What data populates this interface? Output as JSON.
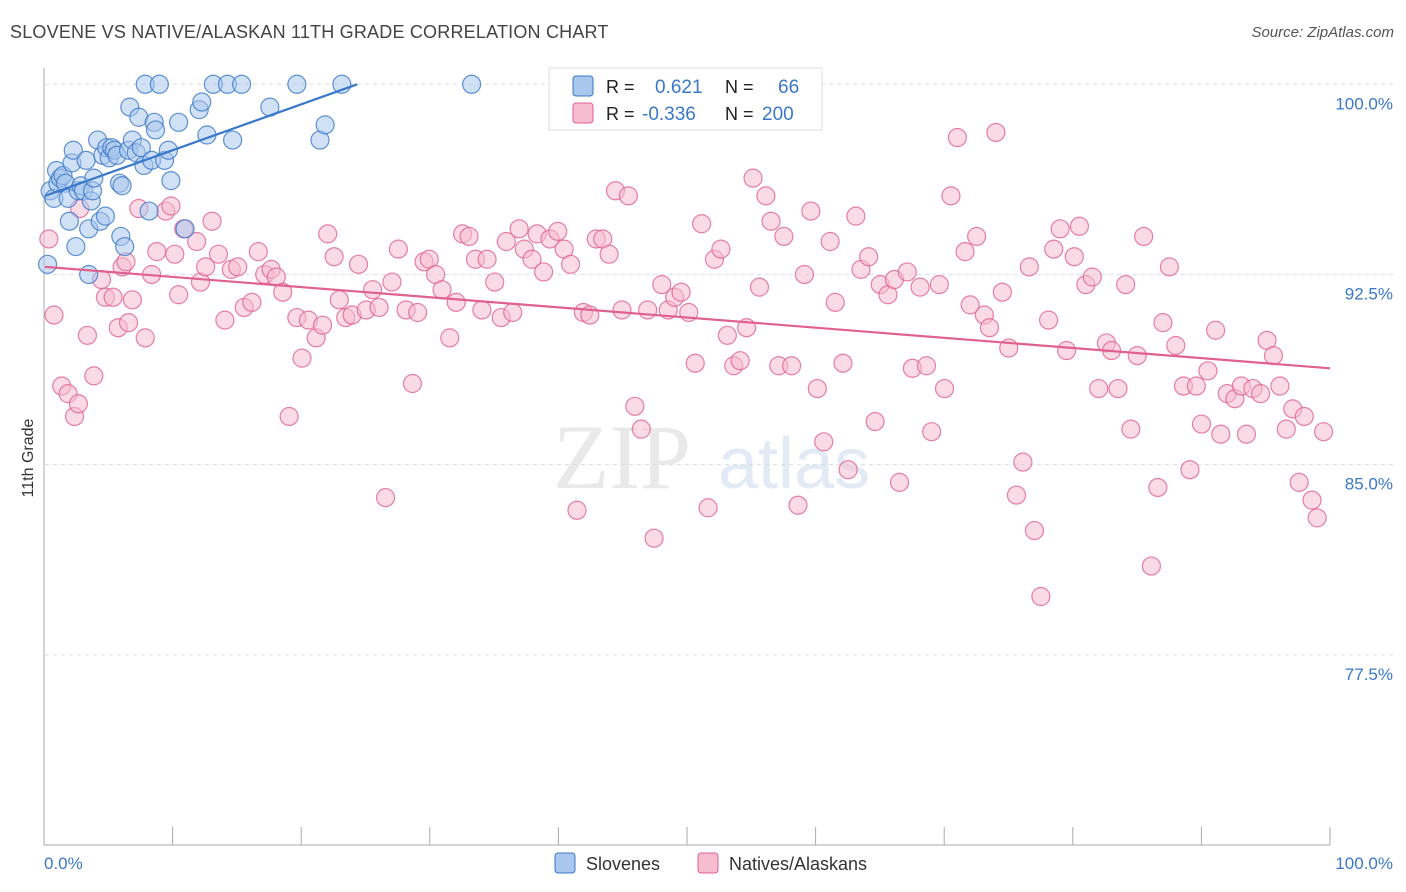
{
  "title": "SLOVENE VS NATIVE/ALASKAN 11TH GRADE CORRELATION CHART",
  "source": "Source: ZipAtlas.com",
  "watermark": {
    "zip": "ZIP",
    "atlas": "atlas"
  },
  "colors": {
    "blue": "#3a78c9",
    "blue_fill": "#a9c6ec",
    "pink": "#e0618f",
    "pink_fill": "#f6bcd0",
    "grid": "#dddddd",
    "tick_label": "#3a78c9"
  },
  "legend": {
    "rows": [
      {
        "r_label": "R =",
        "r_value": "0.621",
        "n_label": "N =",
        "n_value": "66"
      },
      {
        "r_label": "R =",
        "r_value": "-0.336",
        "n_label": "N =",
        "n_value": "200"
      }
    ]
  },
  "bottom_legend": [
    "Slovenes",
    "Natives/Alaskans"
  ],
  "chart_data": {
    "type": "scatter",
    "title": "SLOVENE VS NATIVE/ALASKAN 11TH GRADE CORRELATION CHART",
    "xlabel": "",
    "ylabel": "11th Grade",
    "xlim": [
      0,
      100
    ],
    "ylim": [
      70,
      100.8
    ],
    "x_tick_labels": {
      "left": "0.0%",
      "right": "100.0%"
    },
    "y_ticks": [
      {
        "value": 100.0,
        "label": "100.0%"
      },
      {
        "value": 92.5,
        "label": "92.5%"
      },
      {
        "value": 85.0,
        "label": "85.0%"
      },
      {
        "value": 77.5,
        "label": "77.5%"
      }
    ],
    "grid": true,
    "legend_position": "top-center",
    "series": [
      {
        "name": "Slovenes",
        "color": "#3a78c9",
        "trend": {
          "x": [
            0.0,
            24.3
          ],
          "y": [
            95.6,
            100.0
          ]
        },
        "points": [
          [
            0.2,
            92.9
          ],
          [
            0.4,
            95.8
          ],
          [
            0.7,
            95.5
          ],
          [
            0.9,
            96.6
          ],
          [
            1.0,
            96.1
          ],
          [
            1.2,
            96.3
          ],
          [
            1.4,
            96.4
          ],
          [
            1.6,
            96.1
          ],
          [
            1.8,
            95.5
          ],
          [
            1.9,
            94.6
          ],
          [
            2.1,
            96.9
          ],
          [
            2.2,
            97.4
          ],
          [
            2.4,
            93.6
          ],
          [
            2.6,
            95.8
          ],
          [
            2.8,
            96.0
          ],
          [
            3.0,
            95.8
          ],
          [
            3.2,
            97.0
          ],
          [
            3.4,
            92.5
          ],
          [
            3.4,
            94.3
          ],
          [
            3.6,
            95.4
          ],
          [
            3.7,
            95.8
          ],
          [
            3.8,
            96.3
          ],
          [
            4.1,
            97.8
          ],
          [
            4.3,
            94.6
          ],
          [
            4.5,
            97.2
          ],
          [
            4.7,
            94.8
          ],
          [
            4.8,
            97.5
          ],
          [
            5.0,
            97.1
          ],
          [
            5.2,
            97.5
          ],
          [
            5.4,
            97.4
          ],
          [
            5.6,
            97.2
          ],
          [
            5.8,
            96.1
          ],
          [
            5.9,
            94.0
          ],
          [
            6.0,
            96.0
          ],
          [
            6.2,
            93.6
          ],
          [
            6.5,
            97.4
          ],
          [
            6.6,
            99.1
          ],
          [
            6.8,
            97.8
          ],
          [
            7.1,
            97.3
          ],
          [
            7.3,
            98.7
          ],
          [
            7.5,
            97.5
          ],
          [
            7.7,
            96.8
          ],
          [
            7.8,
            100.0
          ],
          [
            8.1,
            95.0
          ],
          [
            8.3,
            97.0
          ],
          [
            8.5,
            98.5
          ],
          [
            8.6,
            98.2
          ],
          [
            8.9,
            100.0
          ],
          [
            9.3,
            97.0
          ],
          [
            9.6,
            97.4
          ],
          [
            9.8,
            96.2
          ],
          [
            10.4,
            98.5
          ],
          [
            10.9,
            94.3
          ],
          [
            12.0,
            99.0
          ],
          [
            12.2,
            99.3
          ],
          [
            12.6,
            98.0
          ],
          [
            13.1,
            100.0
          ],
          [
            14.2,
            100.0
          ],
          [
            14.6,
            97.8
          ],
          [
            15.3,
            100.0
          ],
          [
            17.5,
            99.1
          ],
          [
            19.6,
            100.0
          ],
          [
            21.4,
            97.8
          ],
          [
            21.8,
            98.4
          ],
          [
            23.1,
            100.0
          ],
          [
            33.2,
            100.0
          ]
        ]
      },
      {
        "name": "Natives/Alaskans",
        "color": "#e0618f",
        "trend": {
          "x": [
            0.0,
            100.0
          ],
          "y": [
            92.8,
            88.8
          ]
        },
        "points": [
          [
            0.3,
            93.9
          ],
          [
            0.7,
            90.9
          ],
          [
            1.3,
            88.1
          ],
          [
            1.8,
            87.8
          ],
          [
            2.3,
            86.9
          ],
          [
            2.6,
            87.4
          ],
          [
            2.7,
            95.1
          ],
          [
            3.3,
            90.1
          ],
          [
            3.8,
            88.5
          ],
          [
            4.4,
            92.3
          ],
          [
            4.7,
            91.6
          ],
          [
            5.3,
            91.6
          ],
          [
            5.7,
            90.4
          ],
          [
            6.0,
            92.8
          ],
          [
            6.3,
            93.0
          ],
          [
            6.5,
            90.6
          ],
          [
            6.8,
            91.5
          ],
          [
            7.3,
            95.1
          ],
          [
            7.8,
            90.0
          ],
          [
            8.3,
            92.5
          ],
          [
            8.7,
            93.4
          ],
          [
            9.4,
            95.0
          ],
          [
            9.8,
            95.2
          ],
          [
            10.1,
            93.3
          ],
          [
            10.4,
            91.7
          ],
          [
            10.8,
            94.3
          ],
          [
            11.8,
            93.8
          ],
          [
            12.1,
            92.2
          ],
          [
            12.5,
            92.8
          ],
          [
            13.0,
            94.6
          ],
          [
            13.5,
            93.3
          ],
          [
            14.0,
            90.7
          ],
          [
            14.5,
            92.7
          ],
          [
            15.0,
            92.8
          ],
          [
            15.5,
            91.2
          ],
          [
            16.1,
            91.4
          ],
          [
            16.6,
            93.4
          ],
          [
            17.1,
            92.5
          ],
          [
            17.6,
            92.7
          ],
          [
            18.0,
            92.4
          ],
          [
            18.5,
            91.8
          ],
          [
            19.0,
            86.9
          ],
          [
            19.6,
            90.8
          ],
          [
            20.0,
            89.2
          ],
          [
            20.5,
            90.7
          ],
          [
            21.1,
            90.0
          ],
          [
            21.6,
            90.5
          ],
          [
            22.0,
            94.1
          ],
          [
            22.5,
            93.2
          ],
          [
            22.9,
            91.5
          ],
          [
            23.4,
            90.8
          ],
          [
            23.9,
            90.9
          ],
          [
            24.4,
            92.9
          ],
          [
            25.0,
            91.1
          ],
          [
            25.5,
            91.9
          ],
          [
            26.0,
            91.2
          ],
          [
            26.5,
            83.7
          ],
          [
            27.0,
            92.2
          ],
          [
            27.5,
            93.5
          ],
          [
            28.1,
            91.1
          ],
          [
            28.6,
            88.2
          ],
          [
            29.0,
            91.0
          ],
          [
            29.5,
            93.0
          ],
          [
            29.9,
            93.1
          ],
          [
            30.4,
            92.5
          ],
          [
            30.9,
            91.9
          ],
          [
            31.5,
            90.0
          ],
          [
            32.0,
            91.4
          ],
          [
            32.5,
            94.1
          ],
          [
            33.0,
            94.0
          ],
          [
            33.5,
            93.1
          ],
          [
            34.0,
            91.1
          ],
          [
            34.4,
            93.1
          ],
          [
            35.0,
            92.2
          ],
          [
            35.5,
            90.8
          ],
          [
            35.9,
            93.8
          ],
          [
            36.4,
            91.0
          ],
          [
            36.9,
            94.3
          ],
          [
            37.3,
            93.5
          ],
          [
            37.9,
            93.1
          ],
          [
            38.3,
            94.1
          ],
          [
            38.8,
            92.6
          ],
          [
            39.3,
            93.9
          ],
          [
            39.9,
            94.2
          ],
          [
            40.4,
            93.5
          ],
          [
            40.9,
            92.9
          ],
          [
            41.4,
            83.2
          ],
          [
            41.9,
            91.0
          ],
          [
            42.4,
            90.9
          ],
          [
            42.9,
            93.9
          ],
          [
            43.4,
            93.9
          ],
          [
            43.9,
            93.3
          ],
          [
            44.4,
            95.8
          ],
          [
            44.9,
            91.1
          ],
          [
            45.4,
            95.6
          ],
          [
            45.9,
            87.3
          ],
          [
            46.4,
            86.4
          ],
          [
            46.9,
            91.1
          ],
          [
            47.4,
            82.1
          ],
          [
            48.0,
            92.1
          ],
          [
            48.5,
            91.1
          ],
          [
            49.0,
            91.6
          ],
          [
            49.5,
            91.8
          ],
          [
            50.1,
            91.0
          ],
          [
            50.6,
            89.0
          ],
          [
            51.1,
            94.5
          ],
          [
            51.6,
            83.3
          ],
          [
            52.1,
            93.1
          ],
          [
            52.6,
            93.5
          ],
          [
            53.1,
            90.1
          ],
          [
            53.6,
            88.9
          ],
          [
            54.1,
            89.1
          ],
          [
            54.6,
            90.4
          ],
          [
            55.1,
            96.3
          ],
          [
            55.6,
            92.0
          ],
          [
            56.1,
            95.6
          ],
          [
            56.5,
            94.6
          ],
          [
            57.1,
            88.9
          ],
          [
            57.5,
            94.0
          ],
          [
            58.1,
            88.9
          ],
          [
            58.6,
            83.4
          ],
          [
            59.1,
            92.5
          ],
          [
            59.6,
            95.0
          ],
          [
            60.1,
            88.0
          ],
          [
            60.6,
            85.9
          ],
          [
            61.1,
            93.8
          ],
          [
            61.5,
            91.4
          ],
          [
            62.1,
            89.0
          ],
          [
            62.5,
            84.8
          ],
          [
            63.1,
            94.8
          ],
          [
            63.5,
            92.7
          ],
          [
            64.1,
            93.2
          ],
          [
            64.6,
            86.7
          ],
          [
            65.0,
            92.1
          ],
          [
            65.6,
            91.7
          ],
          [
            66.1,
            92.3
          ],
          [
            66.5,
            84.3
          ],
          [
            67.1,
            92.6
          ],
          [
            67.5,
            88.8
          ],
          [
            68.1,
            92.0
          ],
          [
            68.6,
            88.9
          ],
          [
            69.0,
            86.3
          ],
          [
            69.6,
            92.1
          ],
          [
            70.0,
            88.0
          ],
          [
            70.5,
            95.6
          ],
          [
            71.0,
            97.9
          ],
          [
            71.6,
            93.4
          ],
          [
            72.0,
            91.3
          ],
          [
            72.5,
            94.0
          ],
          [
            73.1,
            90.9
          ],
          [
            73.5,
            90.4
          ],
          [
            74.0,
            98.1
          ],
          [
            74.5,
            91.8
          ],
          [
            75.0,
            89.6
          ],
          [
            75.6,
            83.8
          ],
          [
            76.1,
            85.1
          ],
          [
            76.6,
            92.8
          ],
          [
            77.0,
            82.4
          ],
          [
            77.5,
            79.8
          ],
          [
            78.1,
            90.7
          ],
          [
            78.5,
            93.5
          ],
          [
            79.0,
            94.3
          ],
          [
            79.5,
            89.5
          ],
          [
            80.1,
            93.2
          ],
          [
            80.5,
            94.4
          ],
          [
            81.0,
            92.1
          ],
          [
            81.5,
            92.4
          ],
          [
            82.0,
            88.0
          ],
          [
            82.6,
            89.8
          ],
          [
            83.0,
            89.5
          ],
          [
            83.5,
            88.0
          ],
          [
            84.1,
            92.1
          ],
          [
            84.5,
            86.4
          ],
          [
            85.0,
            89.3
          ],
          [
            85.5,
            94.0
          ],
          [
            86.1,
            81.0
          ],
          [
            86.6,
            84.1
          ],
          [
            87.0,
            90.6
          ],
          [
            87.5,
            92.8
          ],
          [
            88.0,
            89.7
          ],
          [
            88.6,
            88.1
          ],
          [
            89.1,
            84.8
          ],
          [
            89.6,
            88.1
          ],
          [
            90.0,
            86.6
          ],
          [
            90.5,
            88.7
          ],
          [
            91.1,
            90.3
          ],
          [
            91.5,
            86.2
          ],
          [
            92.0,
            87.8
          ],
          [
            92.6,
            87.6
          ],
          [
            93.1,
            88.1
          ],
          [
            93.5,
            86.2
          ],
          [
            94.0,
            88.0
          ],
          [
            94.6,
            87.8
          ],
          [
            95.1,
            89.9
          ],
          [
            95.6,
            89.3
          ],
          [
            96.1,
            88.1
          ],
          [
            96.6,
            86.4
          ],
          [
            97.1,
            87.2
          ],
          [
            97.6,
            84.3
          ],
          [
            98.0,
            86.9
          ],
          [
            98.6,
            83.6
          ],
          [
            99.0,
            82.9
          ],
          [
            99.5,
            86.3
          ]
        ]
      }
    ]
  }
}
